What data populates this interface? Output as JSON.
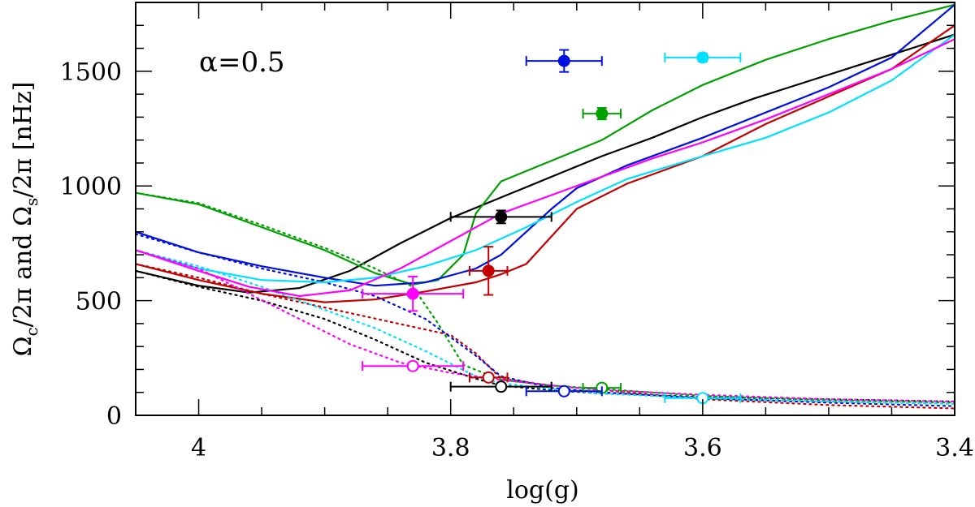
{
  "chart_data": {
    "type": "line",
    "annotation": "α=0.5",
    "xlabel": "log(g)",
    "ylabel_parts": {
      "omega_c": "Ω",
      "sub_c": "c",
      "mid": "/2π and Ω",
      "sub_s": "s",
      "end": "/2π  [nHz]"
    },
    "xlim": [
      4.05,
      3.4
    ],
    "ylim": [
      0,
      1800
    ],
    "xticks": [
      {
        "v": 4,
        "label": "4"
      },
      {
        "v": 3.8,
        "label": "3.8"
      },
      {
        "v": 3.6,
        "label": "3.6"
      },
      {
        "v": 3.4,
        "label": "3.4"
      }
    ],
    "xminor_step": 0.05,
    "yticks": [
      {
        "v": 0,
        "label": "0"
      },
      {
        "v": 500,
        "label": "500"
      },
      {
        "v": 1000,
        "label": "1000"
      },
      {
        "v": 1500,
        "label": "1500"
      }
    ],
    "yminor_step": 100,
    "series": [
      {
        "name": "black",
        "color": "#000000",
        "solid": [
          [
            4.05,
            630
          ],
          [
            4.0,
            565
          ],
          [
            3.96,
            535
          ],
          [
            3.92,
            555
          ],
          [
            3.88,
            630
          ],
          [
            3.84,
            750
          ],
          [
            3.8,
            860
          ],
          [
            3.76,
            950
          ],
          [
            3.72,
            1040
          ],
          [
            3.68,
            1130
          ],
          [
            3.64,
            1210
          ],
          [
            3.6,
            1300
          ],
          [
            3.56,
            1380
          ],
          [
            3.52,
            1450
          ],
          [
            3.48,
            1520
          ],
          [
            3.44,
            1590
          ],
          [
            3.4,
            1660
          ]
        ],
        "dotted": [
          [
            4.05,
            630
          ],
          [
            4.0,
            560
          ],
          [
            3.95,
            500
          ],
          [
            3.9,
            420
          ],
          [
            3.86,
            330
          ],
          [
            3.82,
            230
          ],
          [
            3.78,
            160
          ],
          [
            3.76,
            130
          ],
          [
            3.72,
            110
          ],
          [
            3.68,
            95
          ],
          [
            3.6,
            80
          ],
          [
            3.5,
            70
          ],
          [
            3.4,
            60
          ]
        ],
        "point_c": {
          "x": 3.76,
          "y": 865,
          "xerr": 0.04,
          "yerr": 28
        },
        "point_s": {
          "x": 3.76,
          "y": 125,
          "xerr": 0.04,
          "yerr": 10
        }
      },
      {
        "name": "red",
        "color": "#c40000",
        "solid": [
          [
            4.05,
            660
          ],
          [
            4.0,
            590
          ],
          [
            3.95,
            530
          ],
          [
            3.9,
            493
          ],
          [
            3.86,
            505
          ],
          [
            3.82,
            540
          ],
          [
            3.78,
            580
          ],
          [
            3.76,
            615
          ],
          [
            3.74,
            660
          ],
          [
            3.72,
            780
          ],
          [
            3.7,
            900
          ],
          [
            3.66,
            1010
          ],
          [
            3.6,
            1130
          ],
          [
            3.55,
            1270
          ],
          [
            3.5,
            1390
          ],
          [
            3.45,
            1510
          ],
          [
            3.4,
            1700
          ]
        ],
        "dotted": [
          [
            4.05,
            660
          ],
          [
            4.0,
            600
          ],
          [
            3.95,
            530
          ],
          [
            3.9,
            470
          ],
          [
            3.85,
            410
          ],
          [
            3.8,
            350
          ],
          [
            3.78,
            270
          ],
          [
            3.76,
            160
          ],
          [
            3.72,
            130
          ],
          [
            3.68,
            110
          ],
          [
            3.6,
            70
          ],
          [
            3.5,
            45
          ],
          [
            3.4,
            30
          ]
        ],
        "point_c": {
          "x": 3.77,
          "y": 630,
          "xerr": 0.015,
          "yerr": 105
        },
        "point_s": {
          "x": 3.77,
          "y": 165,
          "xerr": 0.015,
          "yerr": 12
        }
      },
      {
        "name": "green",
        "color": "#00a000",
        "solid": [
          [
            4.05,
            970
          ],
          [
            4.0,
            920
          ],
          [
            3.95,
            820
          ],
          [
            3.9,
            720
          ],
          [
            3.86,
            620
          ],
          [
            3.83,
            570
          ],
          [
            3.81,
            590
          ],
          [
            3.79,
            700
          ],
          [
            3.78,
            880
          ],
          [
            3.76,
            1020
          ],
          [
            3.72,
            1110
          ],
          [
            3.68,
            1200
          ],
          [
            3.64,
            1330
          ],
          [
            3.6,
            1440
          ],
          [
            3.55,
            1550
          ],
          [
            3.5,
            1640
          ],
          [
            3.45,
            1720
          ],
          [
            3.4,
            1790
          ]
        ],
        "dotted": [
          [
            4.05,
            970
          ],
          [
            4.0,
            925
          ],
          [
            3.95,
            830
          ],
          [
            3.9,
            730
          ],
          [
            3.86,
            640
          ],
          [
            3.83,
            560
          ],
          [
            3.81,
            400
          ],
          [
            3.79,
            220
          ],
          [
            3.76,
            155
          ],
          [
            3.72,
            130
          ],
          [
            3.68,
            115
          ],
          [
            3.6,
            85
          ],
          [
            3.5,
            65
          ],
          [
            3.4,
            55
          ]
        ],
        "point_c": {
          "x": 3.68,
          "y": 1315,
          "xerr": 0.015,
          "yerr": 25
        },
        "point_s": {
          "x": 3.68,
          "y": 120,
          "xerr": 0.015,
          "yerr": 10
        }
      },
      {
        "name": "blue",
        "color": "#0010e0",
        "solid": [
          [
            4.05,
            800
          ],
          [
            4.0,
            710
          ],
          [
            3.95,
            650
          ],
          [
            3.9,
            600
          ],
          [
            3.86,
            565
          ],
          [
            3.82,
            580
          ],
          [
            3.78,
            640
          ],
          [
            3.76,
            700
          ],
          [
            3.74,
            800
          ],
          [
            3.72,
            900
          ],
          [
            3.7,
            990
          ],
          [
            3.66,
            1090
          ],
          [
            3.6,
            1210
          ],
          [
            3.55,
            1320
          ],
          [
            3.5,
            1430
          ],
          [
            3.45,
            1560
          ],
          [
            3.4,
            1790
          ]
        ],
        "dotted": [
          [
            4.05,
            790
          ],
          [
            4.0,
            710
          ],
          [
            3.95,
            640
          ],
          [
            3.9,
            580
          ],
          [
            3.86,
            520
          ],
          [
            3.82,
            420
          ],
          [
            3.78,
            260
          ],
          [
            3.76,
            170
          ],
          [
            3.72,
            120
          ],
          [
            3.68,
            100
          ],
          [
            3.6,
            75
          ],
          [
            3.5,
            55
          ],
          [
            3.4,
            40
          ]
        ],
        "point_c": {
          "x": 3.71,
          "y": 1545,
          "xerr": 0.03,
          "yerr": 48
        },
        "point_s": {
          "x": 3.71,
          "y": 105,
          "xerr": 0.03,
          "yerr": 8
        }
      },
      {
        "name": "cyan",
        "color": "#00e0ff",
        "solid": [
          [
            4.05,
            720
          ],
          [
            4.0,
            640
          ],
          [
            3.95,
            590
          ],
          [
            3.9,
            580
          ],
          [
            3.86,
            600
          ],
          [
            3.82,
            650
          ],
          [
            3.78,
            720
          ],
          [
            3.74,
            820
          ],
          [
            3.7,
            930
          ],
          [
            3.66,
            1030
          ],
          [
            3.6,
            1130
          ],
          [
            3.55,
            1210
          ],
          [
            3.5,
            1320
          ],
          [
            3.45,
            1460
          ],
          [
            3.4,
            1660
          ]
        ],
        "dotted": [
          [
            4.05,
            720
          ],
          [
            4.0,
            650
          ],
          [
            3.95,
            560
          ],
          [
            3.9,
            460
          ],
          [
            3.86,
            380
          ],
          [
            3.82,
            280
          ],
          [
            3.78,
            170
          ],
          [
            3.76,
            140
          ],
          [
            3.72,
            115
          ],
          [
            3.68,
            95
          ],
          [
            3.6,
            75
          ],
          [
            3.5,
            60
          ],
          [
            3.4,
            50
          ]
        ],
        "point_c": {
          "x": 3.6,
          "y": 1560,
          "xerr": 0.03,
          "yerr": 18
        },
        "point_s": {
          "x": 3.6,
          "y": 75,
          "xerr": 0.03,
          "yerr": 10
        }
      },
      {
        "name": "magenta",
        "color": "#ff00ff",
        "solid": [
          [
            4.05,
            720
          ],
          [
            4.0,
            630
          ],
          [
            3.96,
            560
          ],
          [
            3.92,
            520
          ],
          [
            3.88,
            545
          ],
          [
            3.84,
            640
          ],
          [
            3.8,
            760
          ],
          [
            3.76,
            880
          ],
          [
            3.72,
            960
          ],
          [
            3.68,
            1040
          ],
          [
            3.64,
            1120
          ],
          [
            3.6,
            1190
          ],
          [
            3.55,
            1290
          ],
          [
            3.5,
            1400
          ],
          [
            3.45,
            1510
          ],
          [
            3.4,
            1640
          ]
        ],
        "dotted": [
          [
            4.05,
            720
          ],
          [
            4.0,
            640
          ],
          [
            3.96,
            530
          ],
          [
            3.92,
            420
          ],
          [
            3.88,
            310
          ],
          [
            3.84,
            230
          ],
          [
            3.8,
            185
          ],
          [
            3.76,
            155
          ],
          [
            3.72,
            130
          ],
          [
            3.68,
            110
          ],
          [
            3.6,
            90
          ],
          [
            3.5,
            70
          ],
          [
            3.4,
            60
          ]
        ],
        "point_c": {
          "x": 3.83,
          "y": 530,
          "xerr": 0.04,
          "yerr": 75
        },
        "point_s": {
          "x": 3.83,
          "y": 215,
          "xerr": 0.04,
          "yerr": 15
        }
      }
    ]
  }
}
